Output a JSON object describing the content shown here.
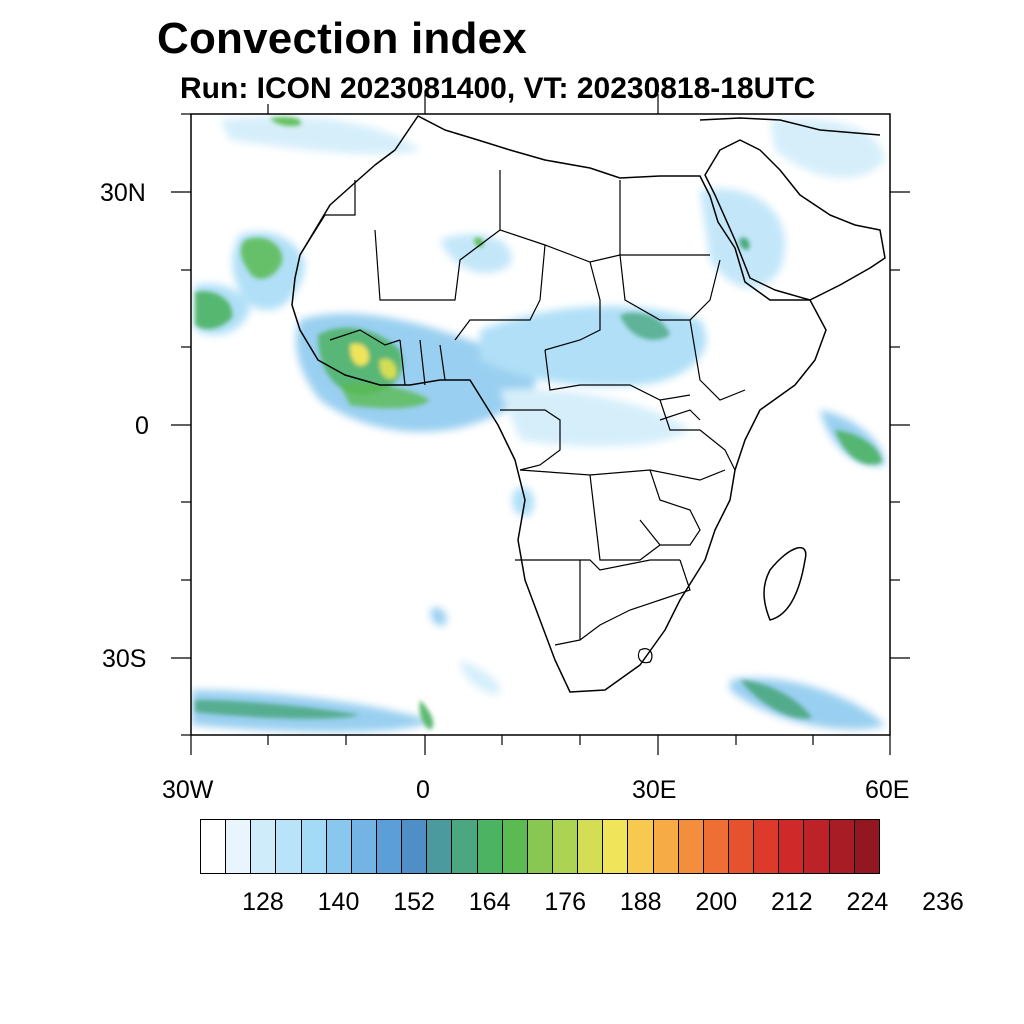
{
  "title": "Convection index",
  "subtitle": "Run: ICON 2023081400,  VT: 20230818-18UTC",
  "map": {
    "region": "Africa",
    "lon_range": [
      -30,
      60
    ],
    "lat_range": [
      -40,
      40
    ],
    "lat_labels": [
      "30N",
      "0",
      "30S"
    ],
    "lon_labels": [
      "30W",
      "0",
      "30E",
      "60E"
    ]
  },
  "colorbar": {
    "colors": [
      "#ffffff",
      "#e8f5fc",
      "#cfecfa",
      "#b9e3f8",
      "#a3daf6",
      "#88c7ee",
      "#73b4e5",
      "#5c9fd8",
      "#4f8fc6",
      "#4a9a9e",
      "#4aa77f",
      "#4cb362",
      "#5bbb52",
      "#88c852",
      "#acd351",
      "#d4de55",
      "#f0e45a",
      "#f7c94f",
      "#f6ab45",
      "#f38f3c",
      "#ee6e34",
      "#e6512e",
      "#de3a2b",
      "#cf2a29",
      "#bc2228",
      "#a81c25",
      "#931721"
    ],
    "tick_labels": [
      "128",
      "140",
      "152",
      "164",
      "176",
      "188",
      "200",
      "212",
      "224",
      "236"
    ]
  }
}
